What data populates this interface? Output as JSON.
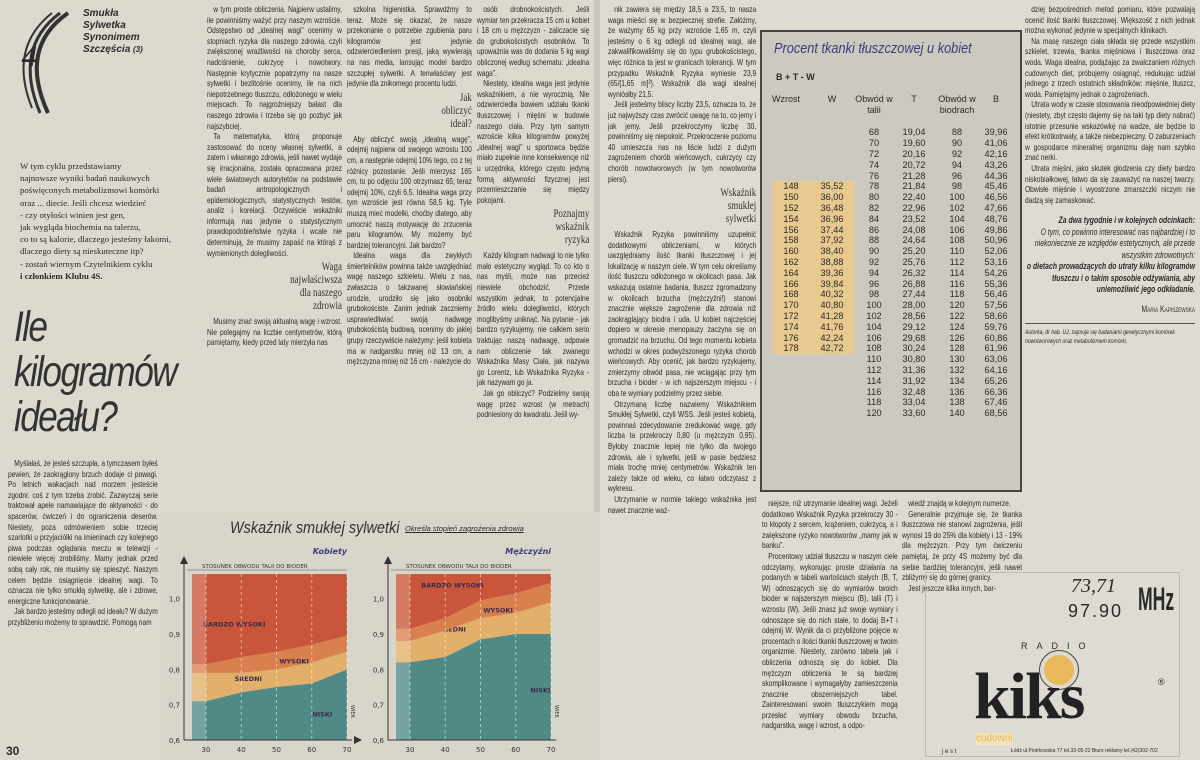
{
  "left": {
    "series_logo": {
      "number": "4",
      "words": [
        "Smukła",
        "Sylwetka",
        "Synonimem",
        "Szczęścia"
      ],
      "part": "(3)"
    },
    "intro": [
      "W tym cyklu przedstawiamy",
      "najnowsze wyniki badań naukowych",
      "poświęconych metabolizmowi komórki",
      "oraz ... diecie. Jeśli chcesz wiedzieć",
      "- czy otyłości winien jest gen,",
      "jak wygląda biochemia na talerzu,",
      "co to są kalorie, dlaczego jesteśmy łakomi,",
      "dlaczego diety są nieskuteczne itp?",
      "- zostań wiernym Czytelnikiem cyklu",
      "i członkiem Klubu 4S."
    ],
    "title": [
      "Ile",
      "kilogramów",
      "ideału?"
    ],
    "col1": [
      "Myślałaś, że jesteś szczupła, a tymczasem byłeś pewien, że zaokrąglony brzuch dodaje ci powagi. Po letnich wakacjach nad morzem jesteście zgodni: coś z tym trzeba zrobić. Zazwyczaj serie traktował apele namawiające do aktywności - do spacerów, ćwiczeń i do ograniczenia deserów. Niestety, poza odmówieniem sobie trzeciej szarlotki u przyjaciółki na imieninach czy kolejnego piwa podczas oglądania meczu w telewizji - niewiele więcej zrobiliśmy. Mamy jednak przed sobą cały rok, nie musimy się spieszyć. Naszym celem będzie osiągnięcie idealnej wagi. To oznacza nie tylko smukłą sylwetkę, ale i zdrowe, energiczne funkcjonowanie.",
      "Jak bardzo jesteśmy odlegli od ideału? W dużym przybliżeniu możemy to sprawdzić. Pomogą nam"
    ],
    "col2": [
      "w tym proste obliczenia. Najpierw ustalimy, ile powinniśmy ważyć przy naszym wzroście. Odstępstwo od „idealnej wagi” ocenimy w stopniach ryzyka dla naszego zdrowia, czyli zwiększonej wrażliwości na choroby serca, nadciśnienie, cukrzycę i nowotwory. Następnie krytycznie popatrzymy na nasze sylwetki i bezlitośnie ocenimy, ile na nich niepotrzebnego tłuszczu, odłożonego w wielu miejscach. To najgroźniejszy balast dla naszego zdrowia i trzeba się go pozbyć jak najszybciej.",
      "Ta matematyka, którą proponuje zastosować do oceny własnej sylwetki, a zatem i własnego zdrowia, jeśli nawet wydaje się irracjonalna, została opracowana przez wiele światowych autorytetów na podstawie badań antropologicznych i epidemiologicznych, statystycznych testów, analiz i korelacji. Oczywiście wskaźniki informują nas jedynie o statystycznym prawdopodobieństwie ryzyka i wcale nie determinują, że musimy zapaść na którąś z wymienionych dolegliwości."
    ],
    "head_waga": [
      "Waga",
      "najwłaściwsza",
      "dla naszego",
      "zdrowia"
    ],
    "col2b": [
      "Musimy znać swoją aktualną wagę i wzrost. Nie polegajmy na liczbie centymetrów, którą pamiętamy, kiedy przed laty mierzyła nas"
    ],
    "col3": [
      "szkolna higienistka. Sprawdźmy to teraz. Może się okazać, że nasze przekonanie o potrzebie zgubienia paru kilogramów jest jedynie odzwierciedleniem presji, jaką wywierają na nas media, lansując model bardzo szczupłej sylwetki. A tenwłaściwy jest jedynie dla znikomego procentu ludzi."
    ],
    "head_jak": [
      "Jak",
      "obliczyć",
      "ideał?"
    ],
    "col3b": [
      "Aby obliczyć swoją „idealną wagę”, odejmij najpierw od swojego wzrostu 100 cm, a następnie odejmij 10% tego, co z tej różnicy pozostanie. Jeśli mierzysz 165 cm, to po odjęciu 100 otrzymasz 65; teraz odejmij 10%, czyli 6,5. Idealna waga przy tym wzroście jest równa 58,5 kg. Tyle muszą mieć modelki, choćby dlatego, aby umocnić naszą motywację do zrzucenia paru kilogramów. My możemy być bardziej tolerancyjni. Jak bardzo?",
      "Idealna waga dla zwykłych śmiertelników powinna także uwzględniać wagę naszego szkieletu. Wielu z nas, zwłaszcza o takzwanej słowiańskiej urodzie, urodziło się jako osobniki grubokościste. Zanim jednak zaczniemy usprawiedliwiać swoją nadwagę grubokościstą budową, ocenimy do jakiej grupy rzeczywiście należymy: jeśli kobieta ma w nadgarstku mniej niż 13 cm, a mężczyzna mniej niż 16 cm - należycie do"
    ],
    "col4": [
      "osób drobnokościstych. Jeśli wymiar ten przekracza 15 cm u kobiet i 18 cm u mężczyzn - zaliczacie się do grubokościstych osobników. To upoważnia was do dodania 5 kg wagi obliczonej według schematu: „idealna waga”.",
      "Niestety, idealna waga jest jedynie wskaźnikiem, a nie wyrocznią. Nie odzwierciedla bowiem udziału tkanki tłuszczowej i mięśni w budowie naszego ciała. Przy tym samym wzroście kilka kilogramów powyżej „idealnej wagi” u sportowca będzie miało zupełnie inne konsekwencje niż u urzędnika, którego często jedyną formą aktywności fizycznej jest przemieszczanie się między pokojami."
    ],
    "head_poznajmy": [
      "Poznajmy",
      "wskaźnik",
      "ryzyka"
    ],
    "col4b": [
      "Każdy kilogram nadwagi to nie tylko mało estetyczny wygląd. To co kto o nas myśli, może nas przecież niewiele obchodzić. Przede wszystkim jednak, to potencjalne źródło wielu dolegliwości, których moglibyśmy uniknąć. Na pytanie - jak bardzo ryzykujemy, nie całkiem serio traktując naszą nadwagę, odpowie nam obliczenie tak zwanego Wskaźnika Masy Ciała, jak nazywa go Lorentz, lub Wskaźnika Ryzyka - jak nazywam go ja.",
      "Jak go obliczyć? Podzielmy swoją wagę przez wzrost (w metrach) podniesiony do kwadratu. Jeśli wy-"
    ],
    "page_number": "30"
  },
  "chart_data": [
    {
      "type": "area",
      "title": "Wskaźnik smukłej sylwetki",
      "subtitle": "Określa stopień zagrożenia zdrowia",
      "panel": "Kobiety",
      "ylabel": "STOSUNEK OBWODU TALII DO BIODER",
      "xlabel": "WIEK",
      "x": [
        30,
        40,
        50,
        60,
        70
      ],
      "ylim": [
        0.6,
        1.07
      ],
      "yticks": [
        "0,6",
        "0,7",
        "0,8",
        "0,9",
        "1,0"
      ],
      "xticks": [
        "30",
        "40",
        "50",
        "60",
        "70"
      ],
      "bands": [
        {
          "name": "NISKI",
          "color": "#4f8a87",
          "upper": [
            0.71,
            0.735,
            0.75,
            0.76,
            0.8
          ]
        },
        {
          "name": "ŚREDNI",
          "color": "#e2b06a",
          "upper": [
            0.79,
            0.79,
            0.8,
            0.82,
            0.85
          ]
        },
        {
          "name": "WYSOKI",
          "color": "#d9804f",
          "upper": [
            0.815,
            0.835,
            0.85,
            0.87,
            0.895
          ]
        },
        {
          "name": "BARDZO WYSOKI",
          "color": "#c9553a",
          "upper": [
            1.07,
            1.07,
            1.07,
            1.07,
            1.07
          ]
        }
      ]
    },
    {
      "type": "area",
      "panel": "Mężczyźni",
      "ylabel": "STOSUNEK OBWODU TALII DO BIODER",
      "xlabel": "WIEK",
      "x": [
        30,
        40,
        50,
        60,
        70
      ],
      "ylim": [
        0.6,
        1.07
      ],
      "yticks": [
        "0,6",
        "0,7",
        "0,8",
        "0,9",
        "1,0"
      ],
      "xticks": [
        "30",
        "40",
        "50",
        "60",
        "70"
      ],
      "bands": [
        {
          "name": "NISKI",
          "color": "#4f8a87",
          "upper": [
            0.82,
            0.835,
            0.885,
            0.9,
            0.9
          ]
        },
        {
          "name": "ŚREDNI",
          "color": "#e2b06a",
          "upper": [
            0.88,
            0.91,
            0.945,
            0.96,
            0.99
          ]
        },
        {
          "name": "WYSOKI",
          "color": "#d9804f",
          "upper": [
            0.915,
            0.945,
            0.995,
            1.015,
            1.045
          ]
        },
        {
          "name": "BARDZO WYSOKI",
          "color": "#c9553a",
          "upper": [
            1.07,
            1.07,
            1.07,
            1.07,
            1.07
          ]
        }
      ]
    }
  ],
  "right": {
    "col1": [
      "nik zawiera się między 18,5 a 23,5, to nasza waga mieści się w bezpiecznej strefie. Załóżmy, że ważymy 65 kg przy wzroście 1,65 m, czyli jesteśmy o 6 kg odlegli od idealnej wagi, ale zakwalifikowaliśmy się do typu grubokościstego, więc różnica ta jest w granicach tolerancji. W tym przypadku Wskaźnik Ryzyka wyniesie 23,9 (65/[1,65 m]²). Wskaźnik dla wagi idealnej wyniósłby 21,5.",
      "Jeśli jesteśmy bliscy liczby 23,5, oznacza to, że już najwyższy czas zwrócić uwagę na to, co jemy i jak jemy. Jeśli przekroczymy liczbę 30, powinniśmy się niepokoić. Przekroczenie poziomu 40 umieszcza nas na liście ludzi z dużym zagrożeniem chorób wieńcowych, cukrzycy czy chorób nowotworowych (w tym nowotworów piersi)."
    ],
    "head_wsk": [
      "Wskaźnik",
      "smukłej",
      "sylwetki"
    ],
    "col1b": [
      "Wskaźnik Ryzyka powinniśmy uzupełnić dodatkowymi obliczeniami, w których uwzględniamy ilość tkanki tłuszczowej i jej lokalizację w naszym ciele. W tym celu określamy ilość tłuszczu odłożonego w okolicach pasa. Jak wskazują ostatnie badania, tłuszcz zgromadzony w okolicach brzucha (mężczyźni!) stanowi znacznie większe zagrożenie dla zdrowia niż zaokrąglający biodra i uda. U kobiet najczęściej dopiero w okresie menopauzy zaczyna się on gromadzić na brzuchu. Od tego momentu kobieta wchodzi w okres podwyższonego ryzyka chorób wieńcowych. Aby ocenić, jak bardzo ryzykujemy, zmierzymy obwód pasa, nie wciągając przy tym brzucha i bioder - w ich najszerszym miejscu - i oba te wymiary podzielmy przez siebie.",
      "Otrzymaną liczbę nazwiemy Wskaźnikiem Smukłej Sylwetki, czyli WSS. Jeśli jesteś kobietą, powinnaś zdecydowanie zredukować wagę, gdy liczba ta przekroczy 0,80 (u mężczyzn 0,95). Byłoby znacznie lepiej nie tylko dla twojego zdrowia, ale i sylwetki, jeśli w pasie będziesz miała trochę mniej centymetrów. Wskaźnik ten zależy także od wieku, co łatwo odczytasz z wykresu.",
      "Utrzymanie w normie takiego wskaźnika jest nawet znacznie waż-"
    ],
    "table": {
      "title": "Procent tkanki tłuszczowej u kobiet",
      "formula": "B + T - W",
      "headers": [
        "Wzrost",
        "W",
        "Obwód w talii",
        "T",
        "Obwód w biodrach",
        "B"
      ],
      "rows": [
        [
          "",
          "",
          "68",
          "19,04",
          "88",
          "39,96"
        ],
        [
          "",
          "",
          "70",
          "19,60",
          "90",
          "41,06"
        ],
        [
          "",
          "",
          "72",
          "20,16",
          "92",
          "42,16"
        ],
        [
          "",
          "",
          "74",
          "20,72",
          "94",
          "43,26"
        ],
        [
          "",
          "",
          "76",
          "21,28",
          "96",
          "44,36"
        ],
        [
          "148",
          "35,52",
          "78",
          "21,84",
          "98",
          "45,46"
        ],
        [
          "150",
          "36,00",
          "80",
          "22,40",
          "100",
          "46,56"
        ],
        [
          "152",
          "36,48",
          "82",
          "22,96",
          "102",
          "47,66"
        ],
        [
          "154",
          "36,96",
          "84",
          "23,52",
          "104",
          "48,76"
        ],
        [
          "156",
          "37,44",
          "86",
          "24,08",
          "106",
          "49,86"
        ],
        [
          "158",
          "37,92",
          "88",
          "24,64",
          "108",
          "50,96"
        ],
        [
          "160",
          "38,40",
          "90",
          "25,20",
          "110",
          "52,06"
        ],
        [
          "162",
          "38,88",
          "92",
          "25,76",
          "112",
          "53,16"
        ],
        [
          "164",
          "39,36",
          "94",
          "26,32",
          "114",
          "54,26"
        ],
        [
          "166",
          "39,84",
          "96",
          "26,88",
          "116",
          "55,36"
        ],
        [
          "168",
          "40,32",
          "98",
          "27,44",
          "118",
          "56,46"
        ],
        [
          "170",
          "40,80",
          "100",
          "28,00",
          "120",
          "57,56"
        ],
        [
          "172",
          "41,28",
          "102",
          "28,56",
          "122",
          "58,66"
        ],
        [
          "174",
          "41,76",
          "104",
          "29,12",
          "124",
          "59,76"
        ],
        [
          "176",
          "42,24",
          "106",
          "29,68",
          "126",
          "60,86"
        ],
        [
          "178",
          "42,72",
          "108",
          "30,24",
          "128",
          "61,96"
        ],
        [
          "",
          "",
          "110",
          "30,80",
          "130",
          "63,06"
        ],
        [
          "",
          "",
          "112",
          "31,36",
          "132",
          "64,16"
        ],
        [
          "",
          "",
          "114",
          "31,92",
          "134",
          "65,26"
        ],
        [
          "",
          "",
          "116",
          "32,48",
          "136",
          "66,36"
        ],
        [
          "",
          "",
          "118",
          "33,04",
          "138",
          "67,46"
        ],
        [
          "",
          "",
          "120",
          "33,60",
          "140",
          "68,56"
        ]
      ]
    },
    "col2": [
      "niejsze, niż utrzymanie idealnej wagi. Jeżeli dodatkowo Wskaźnik Ryzyka przekroczy 30 - to kłopoty z sercem, krążeniem, cukrzycą, a i zwiększone ryzyko nowotworów „mamy jak w banku”.",
      "Procentowy udział tłuszczu w naszym ciele odczytamy, wykonując proste działania na podanych w tabeli wartościach stałych (B, T, W) odnoszących się do wymiarów twoich bioder w najszerszym miejscu (B), talii (T) i wzrostu (W). Jeśli znasz już swoje wymiary i odnoszące się do nich stałe, to dodaj B+T i odejmij W. Wynik da ci przybliżone pojęcie w procentach o ilości tkanki tłuszczowej w twoim organizmie. Niestety, zarówno tabela jak i obliczenia odnoszą się do kobiet. Dla mężczyzn obliczenia te są bardziej skomplikowane i wymagałyby zamieszczenia znacznie obszerniejszych tabel. Zainteresowani swoim tłuszczykiem mogą przesłać wymiary obwodu brzucha, nadgarstka, wagę i wzrost, a odpo-"
    ],
    "col3": [
      "wiedź znajdą w kolejnym numerze.",
      "Generalnie przyjmuje się, że tkanka tłuszczowa nie stanowi zagrożenia, jeśli wynosi 19 do 25% dla kobiety i 13 - 19% dla mężczyzn. Przy tym ćwiczeniu pamiętaj, że przy 4S możemy być dla siebie bardziej tolerancyjni, jeśli nawet zbliżymy się do górnej granicy.",
      "Jest jeszcze kilka innych, bar-"
    ],
    "col4": [
      "dziej bezpośrednich metod pomiaru, które pozwalają ocenić ilość tkanki tłuszczowej. Większość z nich jednak można wykonać jedynie w specjalnych klinikach.",
      "Na masę naszego ciała składa się przede wszystkim szkielet, trzewia, tkanka mięśniowa i tłuszczowa oraz woda. Waga idealna, podążając za zwalczaniem różnych cudownych diet, próbujemy osiągnąć, redukując udział jednego z trzech ostatnich składników: mięśnie, tłuszcz, woda. Pamiętajmy jednak o zagrożeniach.",
      "Utrata wody w czasie stosowania nieodpowiedniej diety (niestety, zbyt często dajemy się na taki typ diety nabrać) istotnie przesunie wskazówkę na wadze, ale będzie to efekt krótkotrwały, a także niebezpieczny. O zaburzeniach w gospodarce mineralnej organizmu daję nam szybko znać nerki.",
      "Utrata mięśni, jako skutek głodzenia czy diety bardzo niskobiałkowej, łatwo da się zauważyć na naszej twarzy. Obwisłe mięśnie i wyostrzone zmarszczki niczym nie dadzą się zamaskować."
    ],
    "teaser": {
      "head": "Za dwa tygodnie i w kolejnych odcinkach:",
      "body": "O tym, co powinno interesować nas najbardziej i to niekoniecznie ze względów estetycznych, ale przede wszystkim zdrowotnych:",
      "bold": "o dietach prowadzących do utraty kilku kilogramów tłuszczu i o takim sposobie odżywiania, aby uniemożliwić jego odkładanie."
    },
    "author": "Maria Kapiszewska",
    "author_note": "Autorka, dr hab. UJ, zajmuje się badaniami genetycznymi komórek nowotworowych oraz metabolizmem komórki.",
    "ad": {
      "freq_hand": "73,71",
      "freq": "97.90",
      "unit": "MHz",
      "radio": "RADIO",
      "brand": "kiks",
      "slogan": "cudowni",
      "jest": "j e s t",
      "address": "Łódź ul.Piotrkowska 77 tel.33-05-22  Biuro reklamy tel.(42)302-702",
      "accent": "#e8b95a"
    }
  }
}
